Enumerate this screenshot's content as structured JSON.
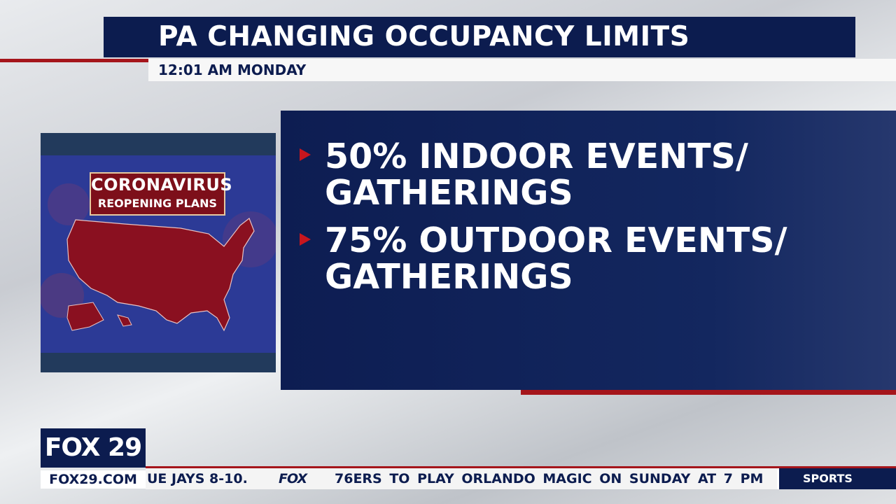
{
  "header": {
    "title": "PA CHANGING OCCUPANCY LIMITS",
    "subtitle": "12:01 AM MONDAY"
  },
  "image": {
    "badge": [
      "CORONAVIRUS",
      "REOPENING PLANS"
    ]
  },
  "bullets": [
    [
      "50% INDOOR EVENTS/",
      "GATHERINGS"
    ],
    [
      "75% OUTDOOR EVENTS/",
      "GATHERINGS"
    ]
  ],
  "logo": {
    "name": "FOX 29",
    "site": "FOX29.COM"
  },
  "ticker": {
    "previous": "UE JAYS 8-10.",
    "brand": "FOX",
    "headline": "76ERS TO PLAY ORLANDO MAGIC ON SUNDAY AT 7 PM",
    "section": "SPORTS"
  }
}
